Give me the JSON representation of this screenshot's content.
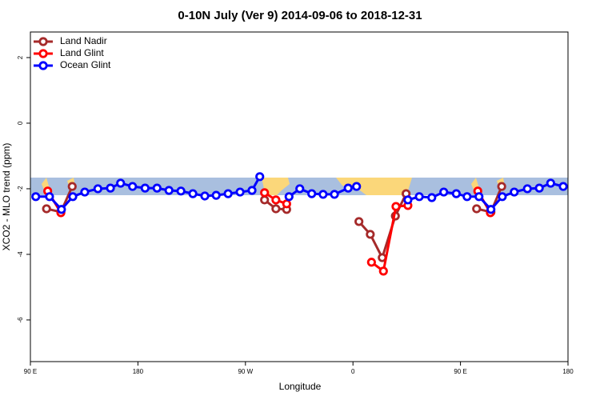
{
  "chart_data": {
    "type": "line",
    "title": "0-10N July (Ver 9)   2014-09-06 to 2018-12-31",
    "x_label": "Longitude",
    "y_label": "XCO2 - MLO trend (ppm)",
    "xlim": [
      90,
      540
    ],
    "xticks": [
      {
        "value": 90,
        "label": "90 E"
      },
      {
        "value": 180,
        "label": "180"
      },
      {
        "value": 270,
        "label": "90 W"
      },
      {
        "value": 360,
        "label": "0"
      },
      {
        "value": 450,
        "label": "90 E"
      },
      {
        "value": 540,
        "label": "180"
      }
    ],
    "ylim": [
      -7.27,
      2.78
    ],
    "yticks": [
      -6,
      -4,
      -2,
      0,
      2
    ],
    "legend": "top-left",
    "series": [
      {
        "name": "Land Nadir",
        "color": "#a52a2a",
        "x": [
          103.5,
          115.5,
          125,
          205,
          286,
          295.5,
          304.5,
          335,
          365,
          374.5,
          384.5,
          395.5,
          404.5,
          435,
          463.5,
          475.5,
          484.5
        ],
        "values": [
          -2.61,
          -2.71,
          -1.93,
          null,
          -2.34,
          -2.61,
          -2.63,
          null,
          -3.0,
          -3.39,
          -4.1,
          -2.83,
          -2.15,
          null,
          -2.61,
          -2.71,
          -1.93
        ]
      },
      {
        "name": "Land Glint",
        "color": "#ff0000",
        "x": [
          104.5,
          115.5,
          205,
          286,
          295.5,
          304.5,
          335,
          375.5,
          385.5,
          396,
          406,
          435,
          464.5,
          475
        ],
        "values": [
          -2.07,
          -2.73,
          null,
          -2.12,
          -2.34,
          -2.46,
          null,
          -4.24,
          -4.51,
          -2.54,
          -2.51,
          null,
          -2.07,
          -2.73
        ]
      },
      {
        "name": "Ocean Glint",
        "color": "#0000ff",
        "x": [
          94.5,
          106,
          116,
          125.5,
          135.5,
          146.5,
          157,
          165.5,
          175.5,
          186,
          196,
          206,
          216,
          226,
          236,
          245.5,
          255.5,
          265.5,
          275.5,
          282,
          290,
          306.5,
          315.5,
          325.5,
          335,
          344.5,
          356,
          363,
          380,
          406,
          415.5,
          426,
          436,
          446.5,
          455.5,
          465.5,
          475.5,
          485,
          495,
          506,
          516,
          525.5,
          536
        ],
        "values": [
          -2.24,
          -2.24,
          -2.63,
          -2.24,
          -2.1,
          -2.0,
          -1.98,
          -1.83,
          -1.93,
          -1.98,
          -1.98,
          -2.05,
          -2.07,
          -2.15,
          -2.22,
          -2.2,
          -2.15,
          -2.1,
          -2.05,
          -1.63,
          null,
          -2.24,
          -2.0,
          -2.15,
          -2.17,
          -2.17,
          -1.98,
          -1.93,
          null,
          -2.34,
          -2.24,
          -2.27,
          -2.1,
          -2.15,
          -2.24,
          -2.24,
          -2.63,
          -2.24,
          -2.1,
          -2.0,
          -1.98,
          -1.83,
          -1.93
        ]
      }
    ]
  }
}
